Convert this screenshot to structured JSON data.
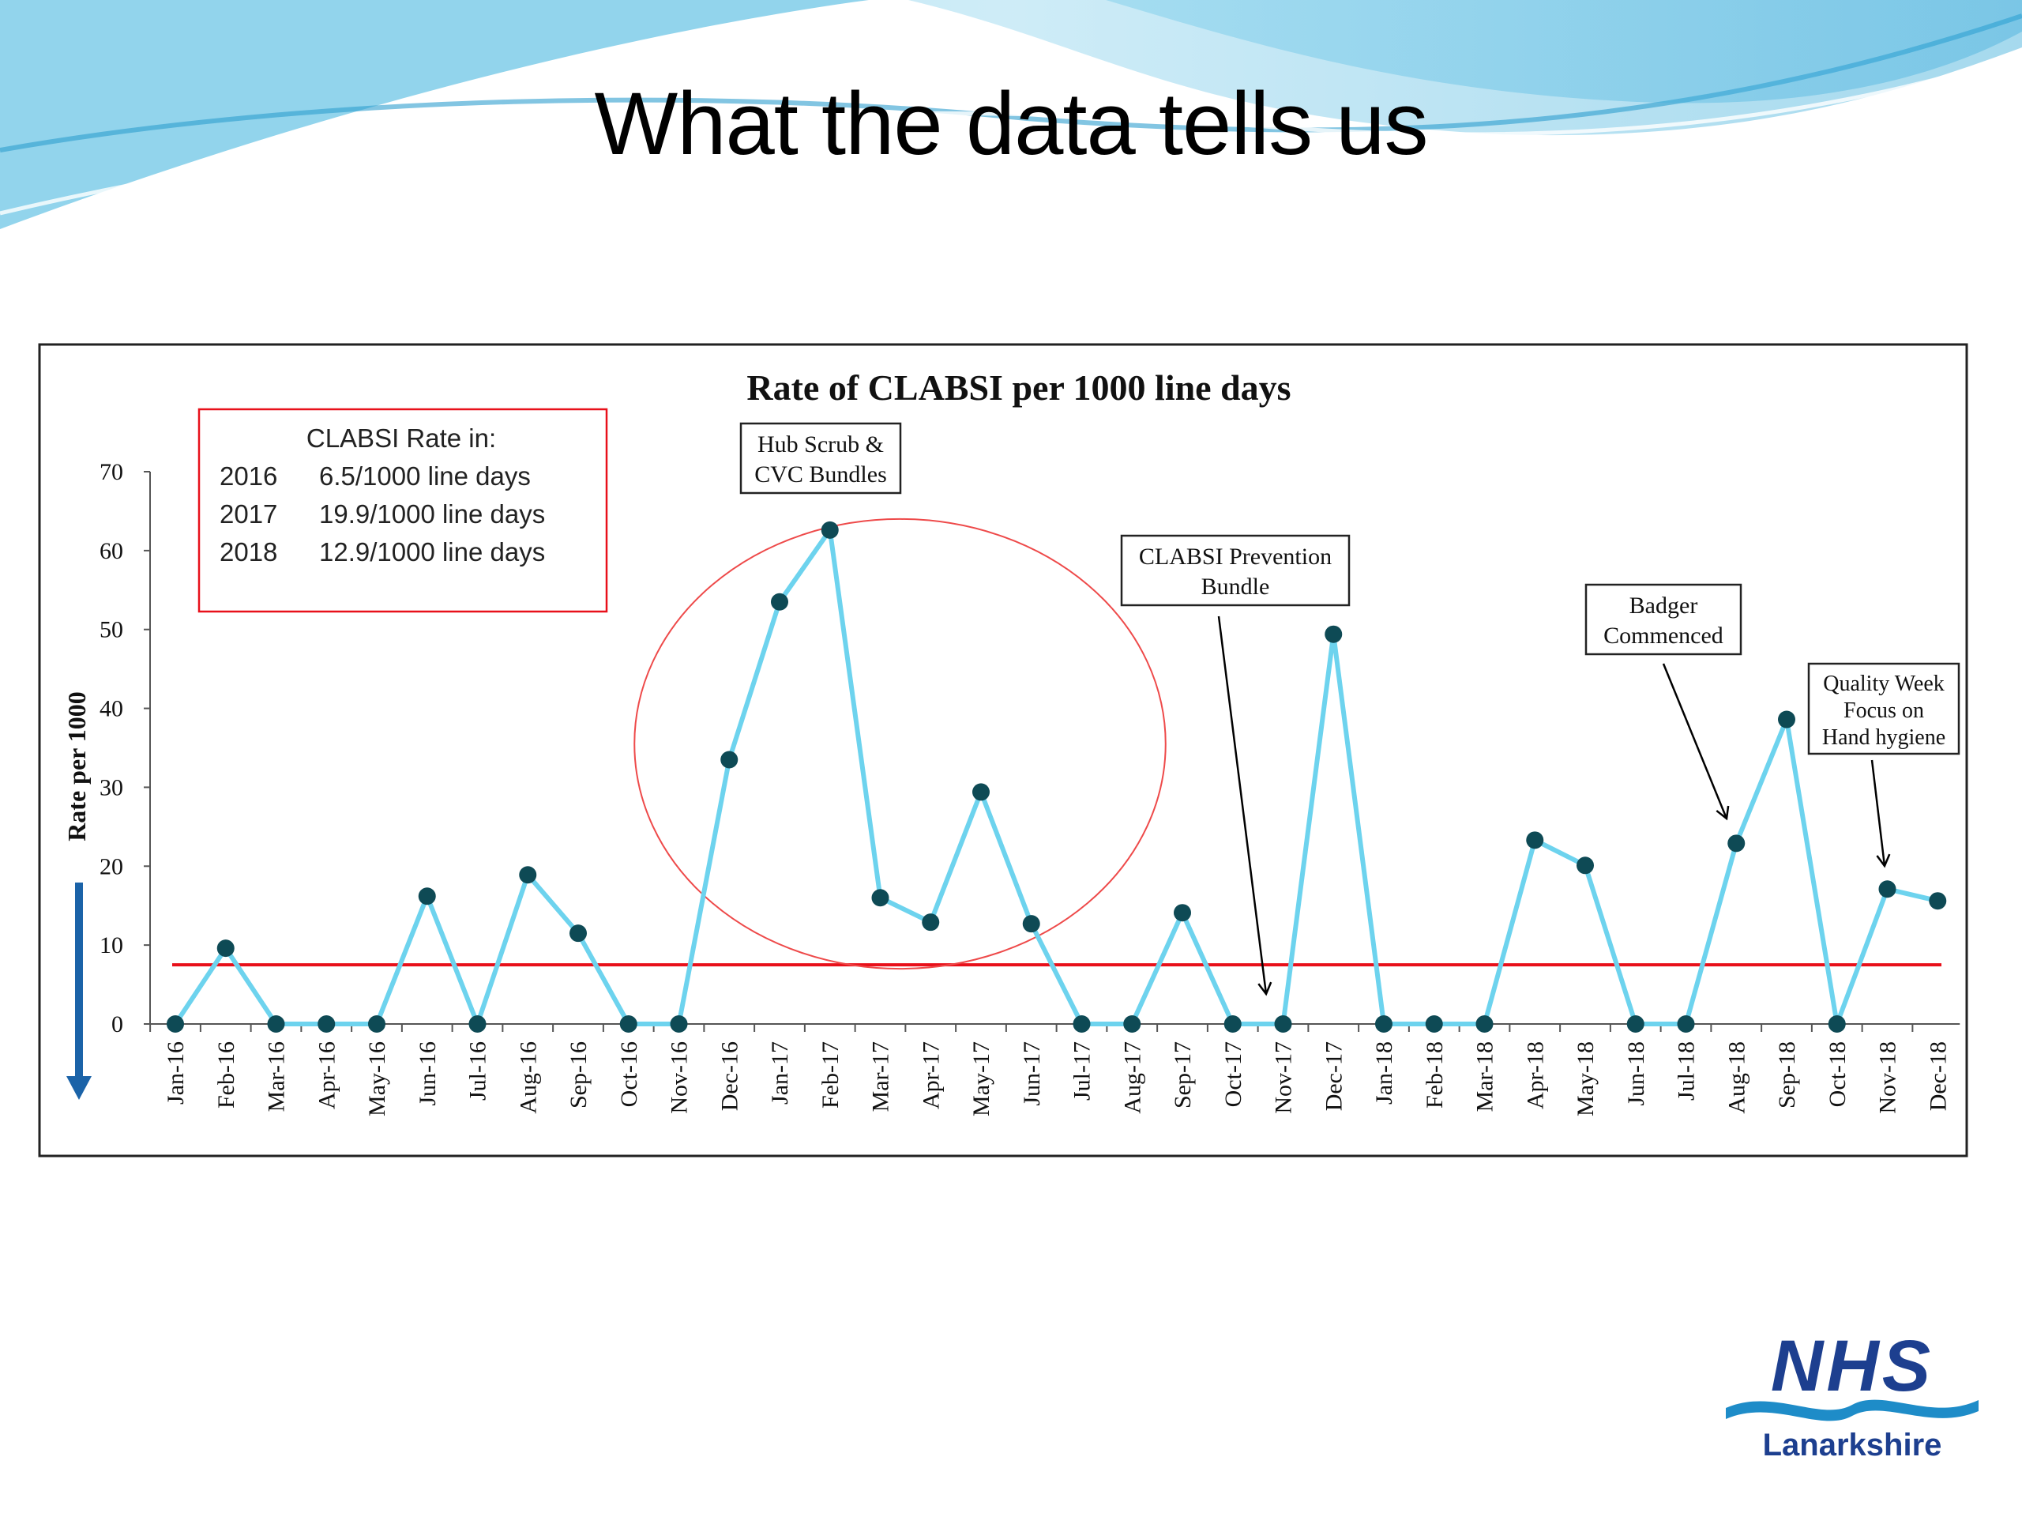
{
  "slide": {
    "title": "What the data tells us"
  },
  "logo": {
    "line1": "NHS",
    "line2": "Lanarkshire"
  },
  "info_box": {
    "heading": "CLABSI Rate in:",
    "rows": [
      {
        "year": "2016",
        "value": "6.5/1000 line days"
      },
      {
        "year": "2017",
        "value": "19.9/1000 line days"
      },
      {
        "year": "2018",
        "value": "12.9/1000 line days"
      }
    ]
  },
  "annotations": [
    {
      "name": "annotation-hub-scrub",
      "lines": [
        "Hub Scrub &",
        "CVC Bundles"
      ]
    },
    {
      "name": "annotation-clabsi-bundle",
      "lines": [
        "CLABSI Prevention",
        "Bundle"
      ]
    },
    {
      "name": "annotation-badger",
      "lines": [
        "Badger",
        "Commenced"
      ]
    },
    {
      "name": "annotation-quality-week",
      "lines": [
        "Quality Week",
        "Focus on",
        "Hand hygiene"
      ]
    }
  ],
  "colors": {
    "series": "#6dd3ee",
    "marker": "#0e4a55",
    "baseline": "#e8101a",
    "ellipse": "#ee4a4a",
    "arrow_axis": "#1b63a8",
    "nhs_blue": "#1d3f8f",
    "nhs_wave": "#1e8cc8"
  },
  "chart_data": {
    "type": "line",
    "title": "Rate of CLABSI per 1000 line days",
    "ylabel": "Rate per 1000",
    "xlabel": "",
    "ylim": [
      0,
      70
    ],
    "yticks": [
      "0",
      "10",
      "20",
      "30",
      "40",
      "50",
      "60",
      "70"
    ],
    "categories": [
      "Jan-16",
      "Feb-16",
      "Mar-16",
      "Apr-16",
      "May-16",
      "Jun-16",
      "Jul-16",
      "Aug-16",
      "Sep-16",
      "Oct-16",
      "Nov-16",
      "Dec-16",
      "Jan-17",
      "Feb-17",
      "Mar-17",
      "Apr-17",
      "May-17",
      "Jun-17",
      "Jul-17",
      "Aug-17",
      "Sep-17",
      "Oct-17",
      "Nov-17",
      "Dec-17",
      "Jan-18",
      "Feb-18",
      "Mar-18",
      "Apr-18",
      "May-18",
      "Jun-18",
      "Jul-18",
      "Aug-18",
      "Sep-18",
      "Oct-18",
      "Nov-18",
      "Dec-18"
    ],
    "values": [
      0,
      9.6,
      0,
      0,
      0,
      16.2,
      0,
      18.9,
      11.5,
      0,
      0,
      33.5,
      53.5,
      62.6,
      16,
      12.9,
      29.4,
      12.7,
      0,
      0,
      14.1,
      0,
      0,
      49.4,
      0,
      0,
      0,
      23.3,
      20.1,
      0,
      0,
      22.9,
      38.6,
      0,
      17.1,
      15.6
    ],
    "baseline": 7.5,
    "grid": false,
    "legend": "none"
  }
}
